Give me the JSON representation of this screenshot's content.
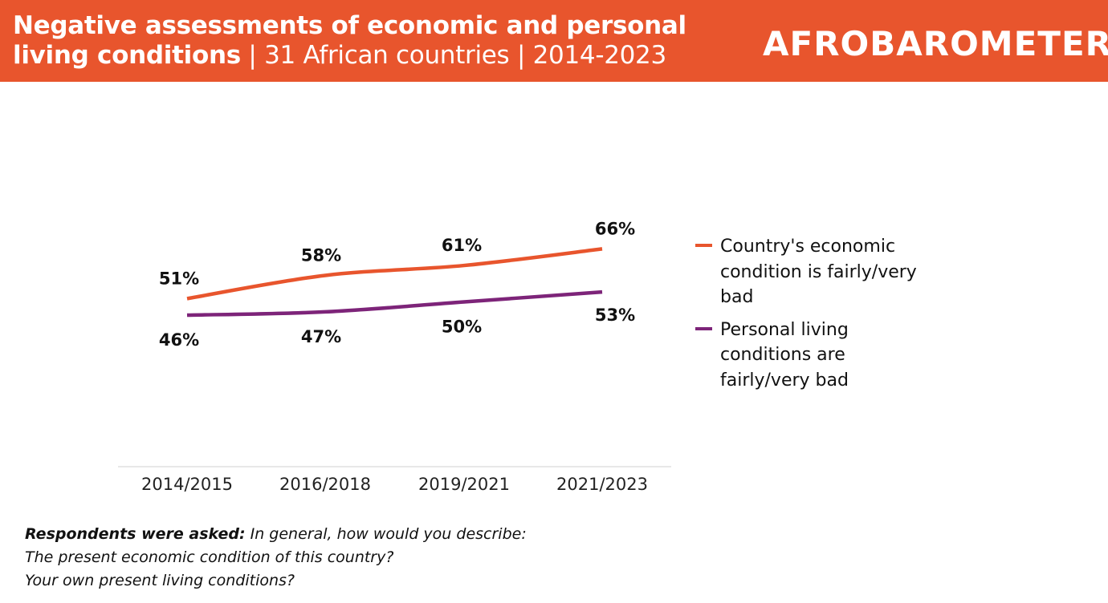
{
  "header": {
    "title_bold": "Negative assessments of economic and personal living conditions",
    "title_rest": " | 31 African countries | 2014-2023",
    "logo_text": "AFROBAROMETER",
    "background_color": "#e8552d"
  },
  "chart_data": {
    "type": "line",
    "categories": [
      "2014/2015",
      "2016/2018",
      "2019/2021",
      "2021/2023"
    ],
    "ylim": [
      0,
      100
    ],
    "grid": false,
    "legend_placement": "right",
    "series": [
      {
        "name": "Country's economic condition is fairly/very bad",
        "values": [
          51,
          58,
          61,
          66
        ],
        "labels": [
          "51%",
          "58%",
          "61%",
          "66%"
        ],
        "color": "#e8552d"
      },
      {
        "name": "Personal living conditions are fairly/very bad",
        "values": [
          46,
          47,
          50,
          53
        ],
        "labels": [
          "46%",
          "47%",
          "50%",
          "53%"
        ],
        "color": "#7d2479"
      }
    ]
  },
  "legend": {
    "items": [
      {
        "label": "Country's economic condition is fairly/very bad",
        "color": "#e8552d"
      },
      {
        "label": "Personal living conditions are fairly/very bad",
        "color": "#7d2479"
      }
    ]
  },
  "note": {
    "lead": "Respondents were asked:",
    "line1": " In general, how would you describe:",
    "line2": "The present economic condition of this country?",
    "line3": "Your own present living conditions?"
  }
}
